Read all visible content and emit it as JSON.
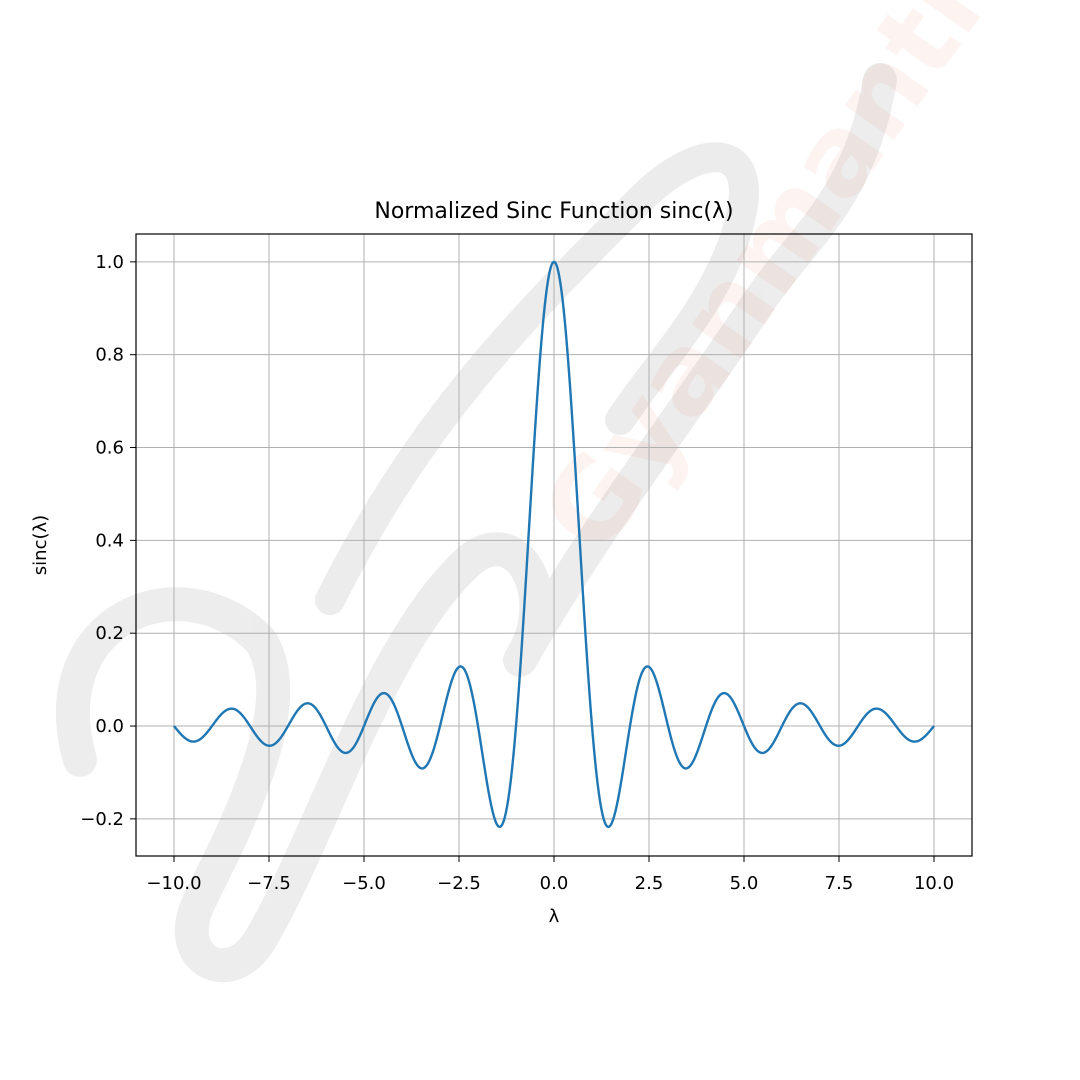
{
  "chart_data": {
    "type": "line",
    "title": "Normalized Sinc Function sinc(λ)",
    "xlabel": "λ",
    "ylabel": "sinc(λ)",
    "xlim": [
      -11,
      11
    ],
    "ylim": [
      -0.28,
      1.06
    ],
    "grid": true,
    "legend": "none",
    "xticks": [
      -10,
      -7.5,
      -5,
      -2.5,
      0,
      2.5,
      5,
      7.5,
      10
    ],
    "xtick_labels": [
      "−10.0",
      "−7.5",
      "−5.0",
      "−2.5",
      "0.0",
      "2.5",
      "5.0",
      "7.5",
      "10.0"
    ],
    "yticks": [
      -0.2,
      0,
      0.2,
      0.4,
      0.6,
      0.8,
      1.0
    ],
    "ytick_labels": [
      "−0.2",
      "0.0",
      "0.2",
      "0.4",
      "0.6",
      "0.8",
      "1.0"
    ],
    "series": [
      {
        "color": "#1f77b4",
        "x": [
          -10,
          -9.5,
          -8.5,
          -7.5,
          -6.5,
          -5.5,
          -4.5,
          -3.5,
          -2.5,
          -1.43,
          0,
          1.43,
          2.5,
          3.5,
          4.5,
          5.5,
          6.5,
          7.5,
          8.5,
          9.5,
          10
        ],
        "y": [
          0.0,
          -0.034,
          0.037,
          -0.042,
          0.049,
          -0.058,
          0.071,
          -0.091,
          0.127,
          -0.217,
          1.0,
          -0.217,
          0.127,
          -0.091,
          0.071,
          -0.058,
          0.049,
          -0.042,
          0.037,
          -0.034,
          0.0
        ],
        "function": "sin(πλ)/(πλ)",
        "samples": 1000
      }
    ]
  },
  "watermark": {
    "text": "Gyanmanthan CLASSES"
  }
}
